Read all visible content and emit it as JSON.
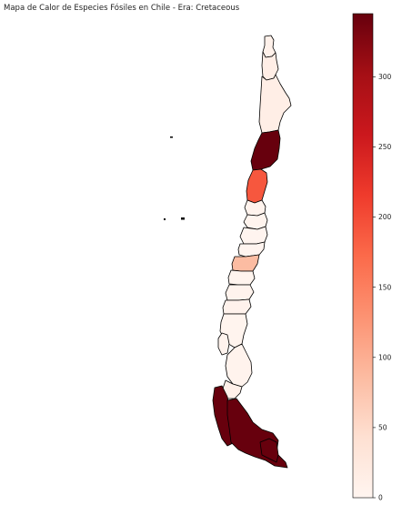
{
  "title": "Mapa de Calor de Especies Fósiles en Chile - Era: Cretaceous",
  "colorbar": {
    "ticks": [
      0,
      50,
      100,
      150,
      200,
      250,
      300
    ],
    "min": 0,
    "max": 345,
    "colormap": "Reds",
    "color_low": "#fff5f0",
    "color_high": "#67000d"
  },
  "chart_data": {
    "type": "heatmap",
    "title": "Mapa de Calor de Especies Fósiles en Chile - Era: Cretaceous",
    "value_range": [
      0,
      345
    ],
    "colorbar_ticks": [
      0,
      50,
      100,
      150,
      200,
      250,
      300
    ],
    "regions": [
      {
        "value": 8
      },
      {
        "value": 15
      },
      {
        "value": 345
      },
      {
        "value": 190
      },
      {
        "value": 5
      },
      {
        "value": 3
      },
      {
        "value": 2
      },
      {
        "value": 85
      },
      {
        "value": 3
      },
      {
        "value": 4
      },
      {
        "value": 6
      },
      {
        "value": 3
      },
      {
        "value": 5
      },
      {
        "value": 4
      },
      {
        "value": 10
      },
      {
        "value": 345
      },
      {
        "value": 345
      }
    ]
  }
}
